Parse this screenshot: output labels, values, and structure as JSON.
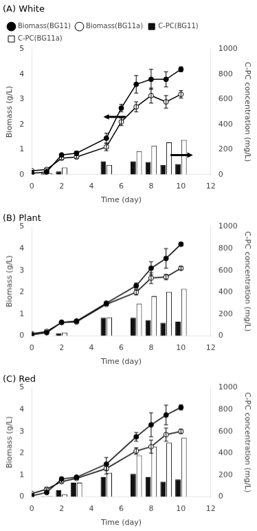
{
  "chart_data": [
    {
      "type": "bar",
      "title": "(A) White",
      "xlabel": "Time (day)",
      "ylabel": "Biomass (g/L)",
      "y2label": "C-PC concentration (mg/L)",
      "xlim": [
        0,
        12
      ],
      "xticks": [
        0,
        2,
        4,
        6,
        8,
        10,
        12
      ],
      "ylim": [
        0,
        5
      ],
      "yticks": [
        0,
        1,
        2,
        3,
        4,
        5
      ],
      "y2lim": [
        0,
        1000
      ],
      "y2ticks": [
        0,
        200,
        400,
        600,
        800,
        1000
      ],
      "grid": false,
      "legend": "upper left",
      "series": [
        {
          "name": "C-PC(BG11)",
          "type": "bar",
          "axis": "y2",
          "color": "#111111",
          "x": [
            1,
            2,
            5,
            7,
            8,
            9,
            10
          ],
          "values": [
            10,
            24,
            106,
            106,
            100,
            76,
            84
          ]
        },
        {
          "name": "C-PC(BG11a)",
          "type": "bar",
          "axis": "y2",
          "color": "#ffffff",
          "x": [
            1,
            2,
            5,
            7,
            8,
            9,
            10
          ],
          "values": [
            10,
            56,
            76,
            186,
            230,
            256,
            276
          ]
        },
        {
          "name": "Biomass(BG11)",
          "type": "line",
          "axis": "y",
          "color": "#000000",
          "marker": "circle",
          "x": [
            0,
            1,
            2,
            3,
            5,
            6,
            7,
            8,
            9,
            10
          ],
          "values": [
            0.05,
            0.1,
            0.78,
            0.85,
            1.45,
            2.65,
            3.6,
            3.8,
            3.8,
            4.2
          ],
          "errors": [
            0.02,
            0.03,
            0.05,
            0.08,
            0.2,
            0.15,
            0.35,
            0.4,
            0.3,
            0.1
          ]
        },
        {
          "name": "Biomass(BG11a)",
          "type": "line",
          "axis": "y",
          "color": "#000000",
          "marker": "open circle",
          "x": [
            0,
            1,
            2,
            3,
            5,
            6,
            7,
            8,
            9,
            10
          ],
          "values": [
            0.15,
            0.2,
            0.65,
            0.7,
            1.1,
            2.1,
            2.7,
            3.15,
            2.9,
            3.2
          ],
          "errors": [
            0.02,
            0.03,
            0.05,
            0.05,
            0.15,
            0.15,
            0.2,
            0.3,
            0.25,
            0.15
          ]
        }
      ],
      "arrows": [
        {
          "from": [
            6.3,
            2.3
          ],
          "to": [
            4.8,
            2.3
          ],
          "axis": "y"
        },
        {
          "from": [
            9.3,
            155
          ],
          "to": [
            10.8,
            155
          ],
          "axis": "y2"
        }
      ]
    },
    {
      "type": "bar",
      "title": "(B) Plant",
      "xlabel": "Time (day)",
      "ylabel": "Biomass (g/L)",
      "y2label": "C-PC concentration (mg/L)",
      "xlim": [
        0,
        12
      ],
      "xticks": [
        0,
        2,
        4,
        6,
        8,
        10,
        12
      ],
      "ylim": [
        0,
        5
      ],
      "yticks": [
        0,
        1,
        2,
        3,
        4,
        5
      ],
      "y2lim": [
        0,
        1000
      ],
      "y2ticks": [
        0,
        200,
        400,
        600,
        800,
        1000
      ],
      "grid": false,
      "series": [
        {
          "type": "bar",
          "axis": "y2",
          "color": "#111111",
          "x": [
            2,
            5,
            7,
            8,
            9,
            10
          ],
          "values": [
            24,
            166,
            166,
            144,
            120,
            130
          ]
        },
        {
          "type": "bar",
          "axis": "y2",
          "color": "#ffffff",
          "x": [
            2,
            5,
            7,
            8,
            9,
            10
          ],
          "values": [
            30,
            170,
            296,
            364,
            404,
            430
          ]
        },
        {
          "type": "line",
          "axis": "y",
          "color": "#000000",
          "marker": "circle",
          "x": [
            0,
            1,
            2,
            3,
            5,
            7,
            8,
            9,
            10
          ],
          "values": [
            0.05,
            0.15,
            0.62,
            0.68,
            1.5,
            2.3,
            3.1,
            3.55,
            4.2
          ],
          "errors": [
            0.02,
            0.03,
            0.04,
            0.04,
            0.08,
            0.12,
            0.3,
            0.45,
            0.08
          ]
        },
        {
          "type": "line",
          "axis": "y",
          "color": "#000000",
          "marker": "open circle",
          "x": [
            0,
            1,
            2,
            3,
            5,
            7,
            8,
            9,
            10
          ],
          "values": [
            0.1,
            0.2,
            0.62,
            0.64,
            1.45,
            2.0,
            2.65,
            2.7,
            3.1
          ],
          "errors": [
            0.02,
            0.02,
            0.05,
            0.04,
            0.06,
            0.12,
            0.25,
            0.12,
            0.08
          ]
        }
      ]
    },
    {
      "type": "bar",
      "title": "(C) Red",
      "xlabel": "Time (day)",
      "ylabel": "Biomass (g/L)",
      "y2label": "C-PC concentration (mg/L)",
      "xlim": [
        0,
        12
      ],
      "xticks": [
        0,
        2,
        4,
        6,
        8,
        10,
        12
      ],
      "ylim": [
        0,
        5
      ],
      "yticks": [
        0,
        1,
        2,
        3,
        4,
        5
      ],
      "y2lim": [
        0,
        1000
      ],
      "y2ticks": [
        0,
        200,
        400,
        600,
        800,
        1000
      ],
      "grid": false,
      "series": [
        {
          "type": "bar",
          "axis": "y2",
          "color": "#111111",
          "x": [
            1,
            2,
            3,
            5,
            7,
            8,
            9,
            10
          ],
          "values": [
            4,
            60,
            130,
            180,
            210,
            180,
            140,
            160
          ]
        },
        {
          "type": "bar",
          "axis": "y2",
          "color": "#ffffff",
          "x": [
            1,
            2,
            3,
            5,
            7,
            8,
            9,
            10
          ],
          "values": [
            6,
            24,
            130,
            220,
            380,
            460,
            496,
            540
          ]
        },
        {
          "type": "line",
          "axis": "y",
          "color": "#000000",
          "marker": "circle",
          "x": [
            0,
            1,
            2,
            3,
            5,
            7,
            8,
            9,
            10
          ],
          "values": [
            0.05,
            0.2,
            0.82,
            0.9,
            1.5,
            2.75,
            3.3,
            3.75,
            4.1
          ],
          "errors": [
            0.02,
            0.03,
            0.05,
            0.05,
            0.3,
            0.2,
            0.55,
            0.45,
            0.12
          ]
        },
        {
          "type": "line",
          "axis": "y",
          "color": "#000000",
          "marker": "open circle",
          "x": [
            0,
            1,
            2,
            3,
            5,
            7,
            8,
            9,
            10
          ],
          "values": [
            0.15,
            0.35,
            0.7,
            0.85,
            1.3,
            2.1,
            2.3,
            2.85,
            3.0
          ],
          "errors": [
            0.02,
            0.05,
            0.05,
            0.05,
            0.25,
            0.15,
            0.3,
            0.3,
            0.1
          ]
        }
      ]
    }
  ]
}
